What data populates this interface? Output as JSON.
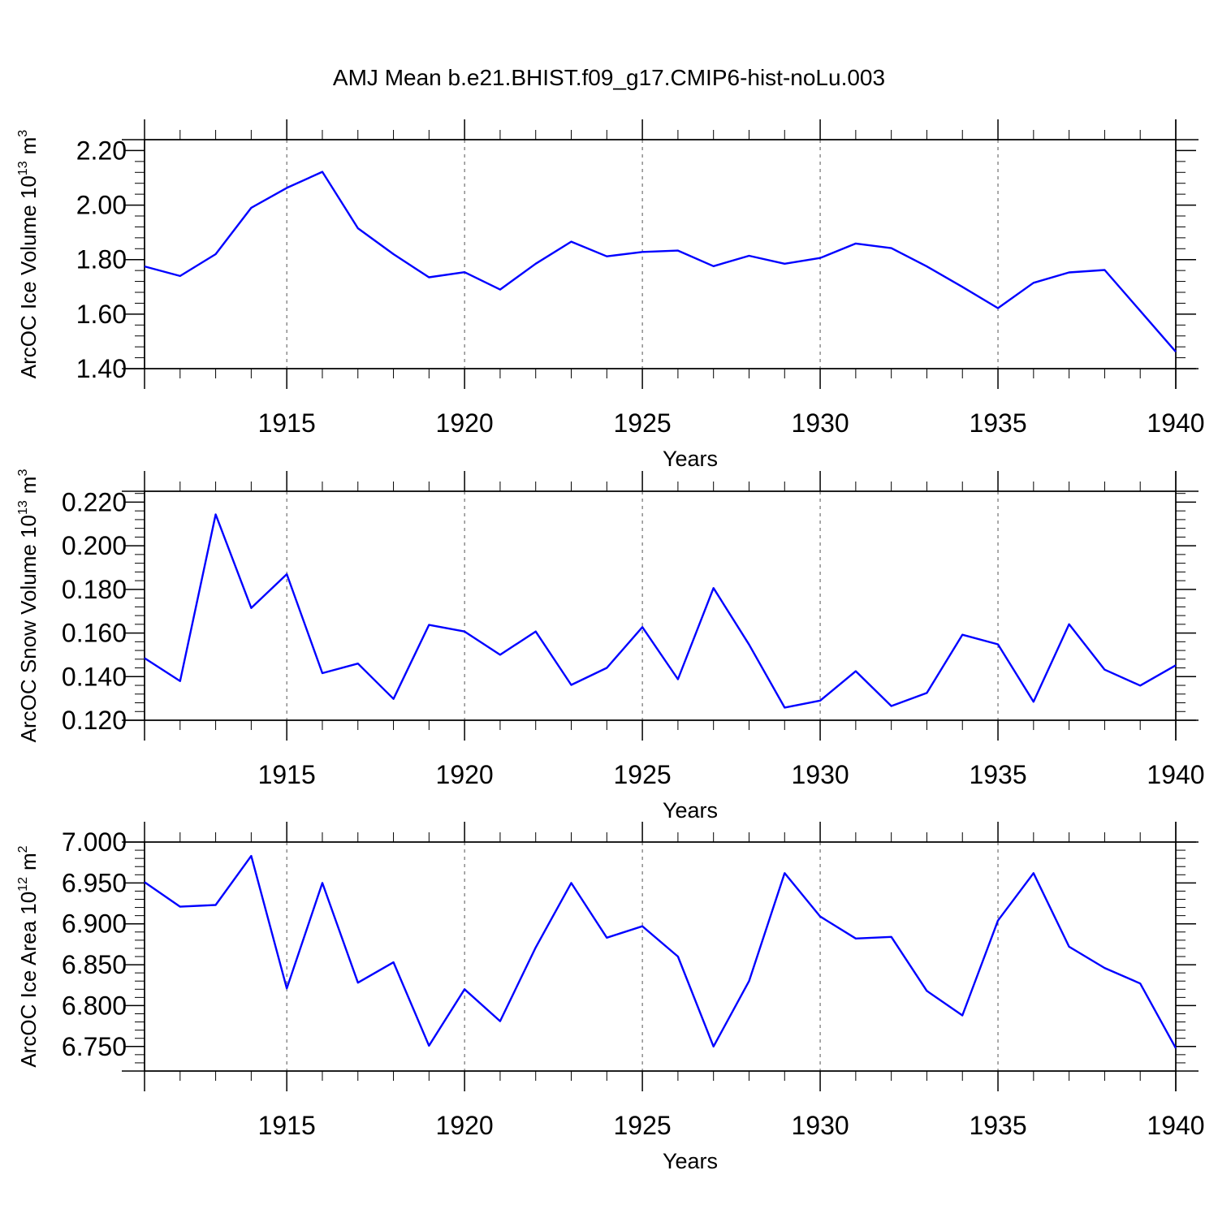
{
  "figure": {
    "title": "AMJ Mean b.e21.BHIST.f09_g17.CMIP6-hist-noLu.003",
    "line_color": "#0000ff"
  },
  "chart_data": [
    {
      "type": "line",
      "title": "AMJ Mean b.e21.BHIST.f09_g17.CMIP6-hist-noLu.003",
      "xlabel": "Years",
      "ylabel_text": "ArcOC Ice Volume 10",
      "ylabel_exp": "13",
      "ylabel_unit": "m",
      "ylabel_unit_exp": "3",
      "xlim": [
        1911,
        1940
      ],
      "ylim": [
        1.4,
        2.24
      ],
      "x_ticks": [
        1915,
        1920,
        1925,
        1930,
        1935,
        1940
      ],
      "x_tick_labels": [
        "1915",
        "1920",
        "1925",
        "1930",
        "1935",
        "1940"
      ],
      "y_ticks": [
        1.4,
        1.6,
        1.8,
        2.0,
        2.2
      ],
      "y_tick_labels": [
        "1.40",
        "1.60",
        "1.80",
        "2.00",
        "2.20"
      ],
      "grid": "vertical dashed at major x ticks",
      "x": [
        1911,
        1912,
        1913,
        1914,
        1915,
        1916,
        1917,
        1918,
        1919,
        1920,
        1921,
        1922,
        1923,
        1924,
        1925,
        1926,
        1927,
        1928,
        1929,
        1930,
        1931,
        1932,
        1933,
        1934,
        1935,
        1936,
        1937,
        1938,
        1939,
        1940
      ],
      "values": [
        1.775,
        1.74,
        1.82,
        1.99,
        2.063,
        2.122,
        1.915,
        1.82,
        1.735,
        1.754,
        1.69,
        1.785,
        1.866,
        1.812,
        1.828,
        1.833,
        1.776,
        1.814,
        1.785,
        1.806,
        1.859,
        1.842,
        1.775,
        1.7,
        1.622,
        1.715,
        1.753,
        1.762,
        1.612,
        1.462
      ]
    },
    {
      "type": "line",
      "xlabel": "Years",
      "ylabel_text": "ArcOC Snow Volume 10",
      "ylabel_exp": "13",
      "ylabel_unit": "m",
      "ylabel_unit_exp": "3",
      "xlim": [
        1911,
        1940
      ],
      "ylim": [
        0.12,
        0.225
      ],
      "x_ticks": [
        1915,
        1920,
        1925,
        1930,
        1935,
        1940
      ],
      "x_tick_labels": [
        "1915",
        "1920",
        "1925",
        "1930",
        "1935",
        "1940"
      ],
      "y_ticks": [
        0.12,
        0.14,
        0.16,
        0.18,
        0.2,
        0.22
      ],
      "y_tick_labels": [
        "0.120",
        "0.140",
        "0.160",
        "0.180",
        "0.200",
        "0.220"
      ],
      "grid": "vertical dashed at major x ticks",
      "x": [
        1911,
        1912,
        1913,
        1914,
        1915,
        1916,
        1917,
        1918,
        1919,
        1920,
        1921,
        1922,
        1923,
        1924,
        1925,
        1926,
        1927,
        1928,
        1929,
        1930,
        1931,
        1932,
        1933,
        1934,
        1935,
        1936,
        1937,
        1938,
        1939,
        1940
      ],
      "values": [
        0.1485,
        0.138,
        0.2144,
        0.1715,
        0.187,
        0.1416,
        0.146,
        0.1298,
        0.1637,
        0.1607,
        0.15,
        0.1607,
        0.1362,
        0.144,
        0.1627,
        0.1388,
        0.1806,
        0.1547,
        0.1258,
        0.129,
        0.1425,
        0.1265,
        0.1325,
        0.1592,
        0.1548,
        0.1285,
        0.164,
        0.1432,
        0.1359,
        0.1452
      ]
    },
    {
      "type": "line",
      "xlabel": "Years",
      "ylabel_text": "ArcOC Ice Area 10",
      "ylabel_exp": "12",
      "ylabel_unit": "m",
      "ylabel_unit_exp": "2",
      "xlim": [
        1911,
        1940
      ],
      "ylim": [
        6.72,
        7.0
      ],
      "x_ticks": [
        1915,
        1920,
        1925,
        1930,
        1935,
        1940
      ],
      "x_tick_labels": [
        "1915",
        "1920",
        "1925",
        "1930",
        "1935",
        "1940"
      ],
      "y_ticks": [
        6.75,
        6.8,
        6.85,
        6.9,
        6.95,
        7.0
      ],
      "y_tick_labels": [
        "6.750",
        "6.800",
        "6.850",
        "6.900",
        "6.950",
        "7.000"
      ],
      "grid": "vertical dashed at major x ticks",
      "x": [
        1911,
        1912,
        1913,
        1914,
        1915,
        1916,
        1917,
        1918,
        1919,
        1920,
        1921,
        1922,
        1923,
        1924,
        1925,
        1926,
        1927,
        1928,
        1929,
        1930,
        1931,
        1932,
        1933,
        1934,
        1935,
        1936,
        1937,
        1938,
        1939,
        1940
      ],
      "values": [
        6.951,
        6.921,
        6.923,
        6.983,
        6.821,
        6.95,
        6.828,
        6.853,
        6.751,
        6.82,
        6.781,
        6.871,
        6.95,
        6.883,
        6.897,
        6.86,
        6.75,
        6.83,
        6.962,
        6.909,
        6.882,
        6.884,
        6.818,
        6.788,
        6.904,
        6.962,
        6.872,
        6.846,
        6.827,
        6.748
      ]
    }
  ]
}
